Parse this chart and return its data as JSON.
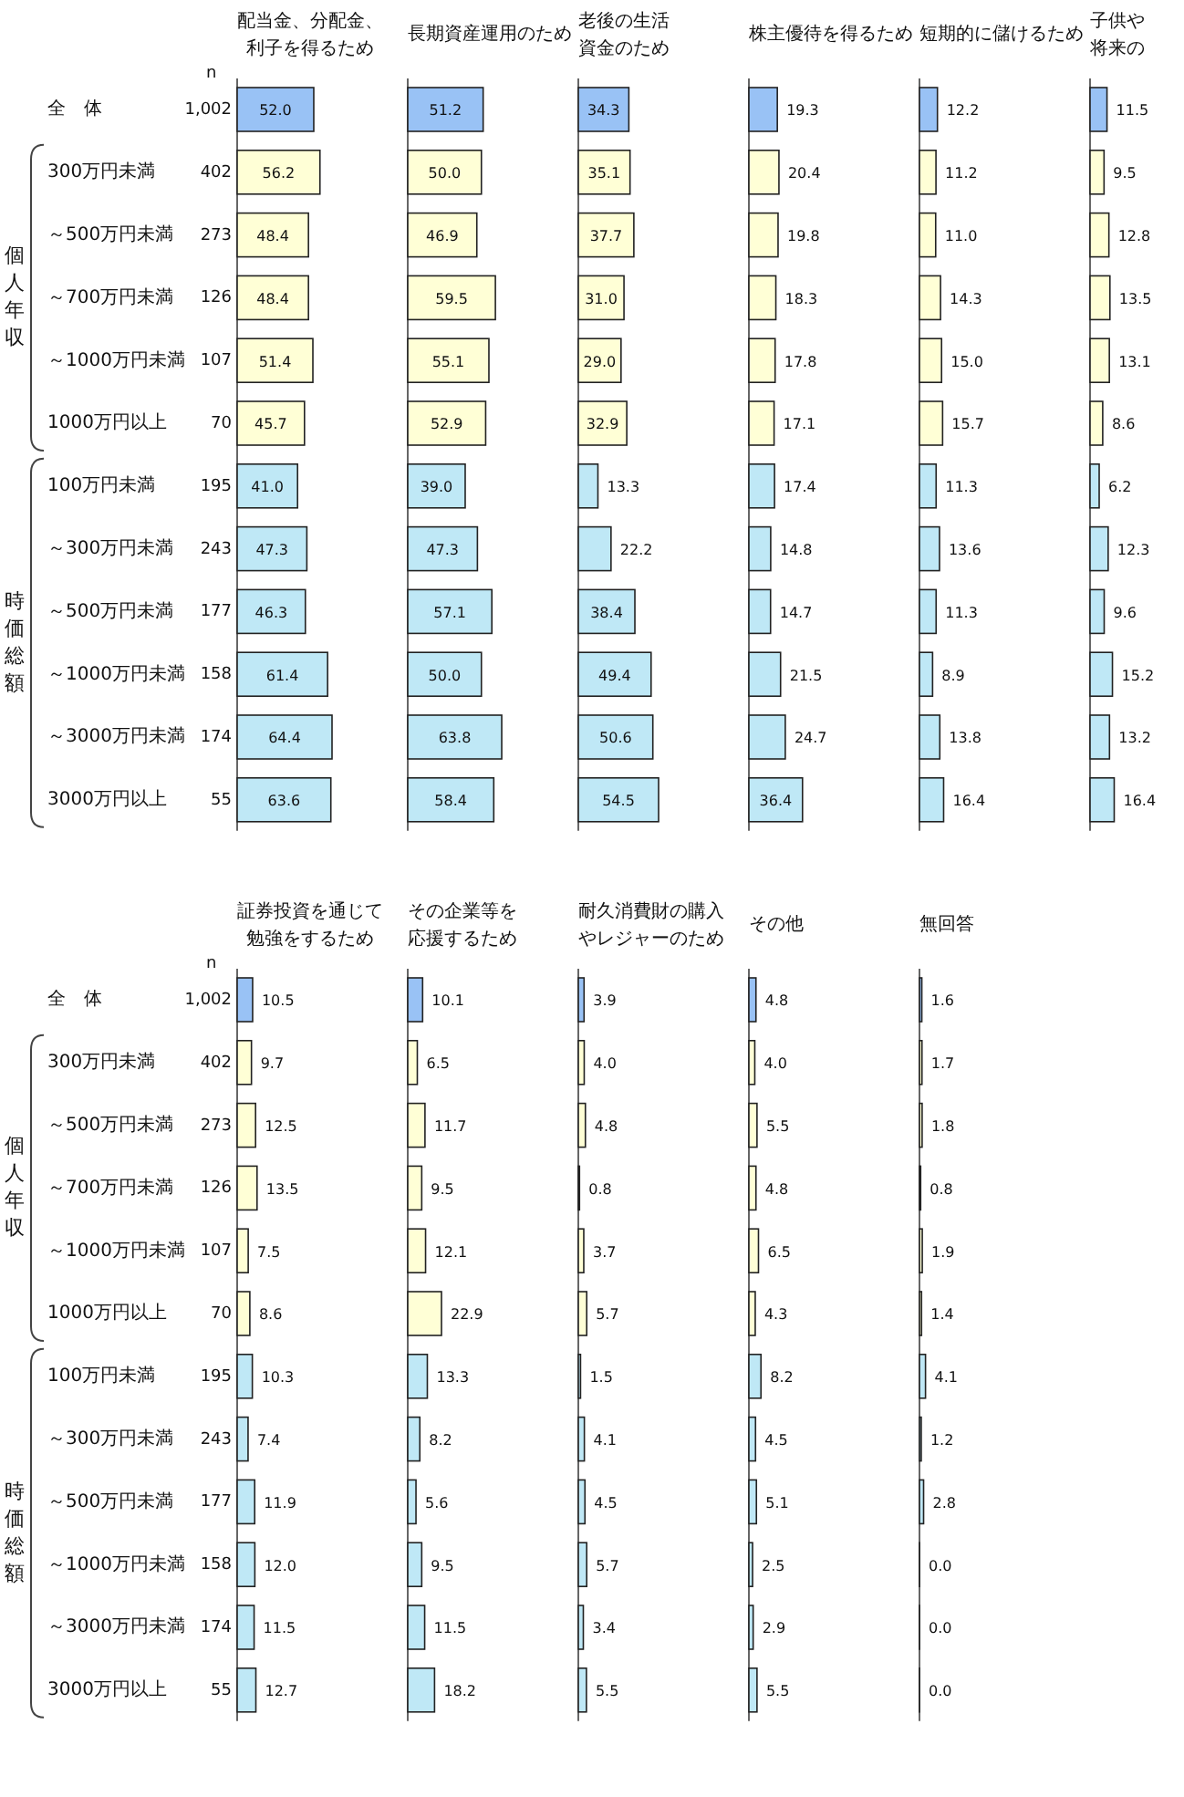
{
  "chart_data": [
    {
      "type": "other",
      "title": "n",
      "annotations": [
        "1,002",
        "402",
        "273",
        "126",
        "107",
        "70",
        "195",
        "243",
        "177",
        "158",
        "174",
        "55"
      ]
    },
    {
      "type": "other",
      "annotations": [
        "個人年収",
        "時価総額"
      ]
    },
    {
      "type": "bar",
      "orientation": "horizontal",
      "title": "配当金、分配金、利子を得るため",
      "tick_labels": "y",
      "categories": [
        "全　体",
        "300万円未満",
        "～500万円未満",
        "～700万円未満",
        "～1000万円未満",
        "1000万円以上",
        "100万円未満",
        "～300万円未満",
        "～500万円未満",
        "～1000万円未満",
        "～3000万円未満",
        "3000万円以上"
      ],
      "colors": [
        "#99c2f5",
        "#ffffd6",
        "#ffffd6",
        "#ffffd6",
        "#ffffd6",
        "#ffffd6",
        "#bfe8f6",
        "#bfe8f6",
        "#bfe8f6",
        "#bfe8f6",
        "#bfe8f6",
        "#bfe8f6"
      ],
      "values": [
        52.0,
        56.2,
        48.4,
        48.4,
        51.4,
        45.7,
        41.0,
        47.3,
        46.3,
        61.4,
        64.4,
        63.6
      ],
      "value_labels": [
        "52.0",
        "56.2",
        "48.4",
        "48.4",
        "51.4",
        "45.7",
        "41.0",
        "47.3",
        "46.3",
        "61.4",
        "64.4",
        "63.6"
      ]
    },
    {
      "type": "bar",
      "orientation": "horizontal",
      "title": "長期資産運用のため",
      "tick_labels": false,
      "categories": [
        "全　体",
        "300万円未満",
        "～500万円未満",
        "～700万円未満",
        "～1000万円未満",
        "1000万円以上",
        "100万円未満",
        "～300万円未満",
        "～500万円未満",
        "～1000万円未満",
        "～3000万円未満",
        "3000万円以上"
      ],
      "colors": [
        "#99c2f5",
        "#ffffd6",
        "#ffffd6",
        "#ffffd6",
        "#ffffd6",
        "#ffffd6",
        "#bfe8f6",
        "#bfe8f6",
        "#bfe8f6",
        "#bfe8f6",
        "#bfe8f6",
        "#bfe8f6"
      ],
      "values": [
        51.2,
        50.0,
        46.9,
        59.5,
        55.1,
        52.9,
        39.0,
        47.3,
        57.1,
        50.0,
        63.8,
        58.4
      ],
      "value_labels": [
        "51.2",
        "50.0",
        "46.9",
        "59.5",
        "55.1",
        "52.9",
        "39.0",
        "47.3",
        "57.1",
        "50.0",
        "63.8",
        "58.4"
      ]
    },
    {
      "type": "bar",
      "orientation": "horizontal",
      "title": "老後の生活資金のため",
      "tick_labels": false,
      "categories": [
        "全　体",
        "300万円未満",
        "～500万円未満",
        "～700万円未満",
        "～1000万円未満",
        "1000万円以上",
        "100万円未満",
        "～300万円未満",
        "～500万円未満",
        "～1000万円未満",
        "～3000万円未満",
        "3000万円以上"
      ],
      "colors": [
        "#99c2f5",
        "#ffffd6",
        "#ffffd6",
        "#ffffd6",
        "#ffffd6",
        "#ffffd6",
        "#bfe8f6",
        "#bfe8f6",
        "#bfe8f6",
        "#bfe8f6",
        "#bfe8f6",
        "#bfe8f6"
      ],
      "values": [
        34.3,
        35.1,
        37.7,
        31.0,
        29.0,
        32.9,
        13.3,
        22.2,
        38.4,
        49.4,
        50.6,
        54.5
      ],
      "value_labels": [
        "34.3",
        "35.1",
        "37.7",
        "31.0",
        "29.0",
        "32.9",
        "13.3",
        "22.2",
        "38.4",
        "49.4",
        "50.6",
        "54.5"
      ]
    },
    {
      "type": "bar",
      "orientation": "horizontal",
      "title": "株主優待を得るため",
      "tick_labels": false,
      "categories": [
        "全　体",
        "300万円未満",
        "～500万円未満",
        "～700万円未満",
        "～1000万円未満",
        "1000万円以上",
        "100万円未満",
        "～300万円未満",
        "～500万円未満",
        "～1000万円未満",
        "～3000万円未満",
        "3000万円以上"
      ],
      "colors": [
        "#99c2f5",
        "#ffffd6",
        "#ffffd6",
        "#ffffd6",
        "#ffffd6",
        "#ffffd6",
        "#bfe8f6",
        "#bfe8f6",
        "#bfe8f6",
        "#bfe8f6",
        "#bfe8f6",
        "#bfe8f6"
      ],
      "values": [
        19.3,
        20.4,
        19.8,
        18.3,
        17.8,
        17.1,
        17.4,
        14.8,
        14.7,
        21.5,
        24.7,
        36.4
      ],
      "value_labels": [
        "19.3",
        "20.4",
        "19.8",
        "18.3",
        "17.8",
        "17.1",
        "17.4",
        "14.8",
        "14.7",
        "21.5",
        "24.7",
        "36.4"
      ]
    },
    {
      "type": "bar",
      "orientation": "horizontal",
      "title": "短期的に儲けるため",
      "tick_labels": false,
      "categories": [
        "全　体",
        "300万円未満",
        "～500万円未満",
        "～700万円未満",
        "～1000万円未満",
        "1000万円以上",
        "100万円未満",
        "～300万円未満",
        "～500万円未満",
        "～1000万円未満",
        "～3000万円未満",
        "3000万円以上"
      ],
      "colors": [
        "#99c2f5",
        "#ffffd6",
        "#ffffd6",
        "#ffffd6",
        "#ffffd6",
        "#ffffd6",
        "#bfe8f6",
        "#bfe8f6",
        "#bfe8f6",
        "#bfe8f6",
        "#bfe8f6",
        "#bfe8f6"
      ],
      "values": [
        12.2,
        11.2,
        11.0,
        14.3,
        15.0,
        15.7,
        11.3,
        13.6,
        11.3,
        8.9,
        13.8,
        16.4
      ],
      "value_labels": [
        "12.2",
        "11.2",
        "11.0",
        "14.3",
        "15.0",
        "15.7",
        "11.3",
        "13.6",
        "11.3",
        "8.9",
        "13.8",
        "16.4"
      ]
    },
    {
      "type": "bar",
      "orientation": "horizontal",
      "title": "子供や将来の",
      "tick_labels": false,
      "categories": [
        "全　体",
        "300万円未満",
        "～500万円未満",
        "～700万円未満",
        "～1000万円未満",
        "1000万円以上",
        "100万円未満",
        "～300万円未満",
        "～500万円未満",
        "～1000万円未満",
        "～3000万円未満",
        "3000万円以上"
      ],
      "colors": [
        "#99c2f5",
        "#ffffd6",
        "#ffffd6",
        "#ffffd6",
        "#ffffd6",
        "#ffffd6",
        "#bfe8f6",
        "#bfe8f6",
        "#bfe8f6",
        "#bfe8f6",
        "#bfe8f6",
        "#bfe8f6"
      ],
      "values": [
        11.5,
        9.5,
        12.8,
        13.5,
        13.1,
        8.6,
        6.2,
        12.3,
        9.6,
        15.2,
        13.2,
        16.4
      ],
      "value_labels": [
        "11.5",
        "9.5",
        "12.8",
        "13.5",
        "13.1",
        "8.6",
        "6.2",
        "12.3",
        "9.6",
        "15.2",
        "13.2",
        "16.4"
      ]
    },
    {
      "type": "other",
      "title": "n",
      "annotations": [
        "1,002",
        "402",
        "273",
        "126",
        "107",
        "70",
        "195",
        "243",
        "177",
        "158",
        "174",
        "55"
      ]
    },
    {
      "type": "other",
      "annotations": [
        "個人年収",
        "時価総額"
      ]
    },
    {
      "type": "bar",
      "orientation": "horizontal",
      "title": "証券投資を通じて勉強をするため",
      "tick_labels": "y",
      "categories": [
        "全　体",
        "300万円未満",
        "～500万円未満",
        "～700万円未満",
        "～1000万円未満",
        "1000万円以上",
        "100万円未満",
        "～300万円未満",
        "～500万円未満",
        "～1000万円未満",
        "～3000万円未満",
        "3000万円以上"
      ],
      "colors": [
        "#99c2f5",
        "#ffffd6",
        "#ffffd6",
        "#ffffd6",
        "#ffffd6",
        "#ffffd6",
        "#bfe8f6",
        "#bfe8f6",
        "#bfe8f6",
        "#bfe8f6",
        "#bfe8f6",
        "#bfe8f6"
      ],
      "values": [
        10.5,
        9.7,
        12.5,
        13.5,
        7.5,
        8.6,
        10.3,
        7.4,
        11.9,
        12.0,
        11.5,
        12.7
      ],
      "value_labels": [
        "10.5",
        "9.7",
        "12.5",
        "13.5",
        "7.5",
        "8.6",
        "10.3",
        "7.4",
        "11.9",
        "12.0",
        "11.5",
        "12.7"
      ]
    },
    {
      "type": "bar",
      "orientation": "horizontal",
      "title": "その企業等を応援するため",
      "tick_labels": false,
      "categories": [
        "全　体",
        "300万円未満",
        "～500万円未満",
        "～700万円未満",
        "～1000万円未満",
        "1000万円以上",
        "100万円未満",
        "～300万円未満",
        "～500万円未満",
        "～1000万円未満",
        "～3000万円未満",
        "3000万円以上"
      ],
      "colors": [
        "#99c2f5",
        "#ffffd6",
        "#ffffd6",
        "#ffffd6",
        "#ffffd6",
        "#ffffd6",
        "#bfe8f6",
        "#bfe8f6",
        "#bfe8f6",
        "#bfe8f6",
        "#bfe8f6",
        "#bfe8f6"
      ],
      "values": [
        10.1,
        6.5,
        11.7,
        9.5,
        12.1,
        22.9,
        13.3,
        8.2,
        5.6,
        9.5,
        11.5,
        18.2
      ],
      "value_labels": [
        "10.1",
        "6.5",
        "11.7",
        "9.5",
        "12.1",
        "22.9",
        "13.3",
        "8.2",
        "5.6",
        "9.5",
        "11.5",
        "18.2"
      ]
    },
    {
      "type": "bar",
      "orientation": "horizontal",
      "title": "耐久消費財の購入やレジャーのため",
      "tick_labels": false,
      "categories": [
        "全　体",
        "300万円未満",
        "～500万円未満",
        "～700万円未満",
        "～1000万円未満",
        "1000万円以上",
        "100万円未満",
        "～300万円未満",
        "～500万円未満",
        "～1000万円未満",
        "～3000万円未満",
        "3000万円以上"
      ],
      "colors": [
        "#99c2f5",
        "#ffffd6",
        "#ffffd6",
        "#ffffd6",
        "#ffffd6",
        "#ffffd6",
        "#bfe8f6",
        "#bfe8f6",
        "#bfe8f6",
        "#bfe8f6",
        "#bfe8f6",
        "#bfe8f6"
      ],
      "values": [
        3.9,
        4.0,
        4.8,
        0.8,
        3.7,
        5.7,
        1.5,
        4.1,
        4.5,
        5.7,
        3.4,
        5.5
      ],
      "value_labels": [
        "3.9",
        "4.0",
        "4.8",
        "0.8",
        "3.7",
        "5.7",
        "1.5",
        "4.1",
        "4.5",
        "5.7",
        "3.4",
        "5.5"
      ]
    },
    {
      "type": "bar",
      "orientation": "horizontal",
      "title": "その他",
      "tick_labels": false,
      "categories": [
        "全　体",
        "300万円未満",
        "～500万円未満",
        "～700万円未満",
        "～1000万円未満",
        "1000万円以上",
        "100万円未満",
        "～300万円未満",
        "～500万円未満",
        "～1000万円未満",
        "～3000万円未満",
        "3000万円以上"
      ],
      "colors": [
        "#99c2f5",
        "#ffffd6",
        "#ffffd6",
        "#ffffd6",
        "#ffffd6",
        "#ffffd6",
        "#bfe8f6",
        "#bfe8f6",
        "#bfe8f6",
        "#bfe8f6",
        "#bfe8f6",
        "#bfe8f6"
      ],
      "values": [
        4.8,
        4.0,
        5.5,
        4.8,
        6.5,
        4.3,
        8.2,
        4.5,
        5.1,
        2.5,
        2.9,
        5.5
      ],
      "value_labels": [
        "4.8",
        "4.0",
        "5.5",
        "4.8",
        "6.5",
        "4.3",
        "8.2",
        "4.5",
        "5.1",
        "2.5",
        "2.9",
        "5.5"
      ]
    },
    {
      "type": "bar",
      "orientation": "horizontal",
      "title": "無回答",
      "tick_labels": false,
      "categories": [
        "全　体",
        "300万円未満",
        "～500万円未満",
        "～700万円未満",
        "～1000万円未満",
        "1000万円以上",
        "100万円未満",
        "～300万円未満",
        "～500万円未満",
        "～1000万円未満",
        "～3000万円未満",
        "3000万円以上"
      ],
      "colors": [
        "#99c2f5",
        "#ffffd6",
        "#ffffd6",
        "#ffffd6",
        "#ffffd6",
        "#ffffd6",
        "#bfe8f6",
        "#bfe8f6",
        "#bfe8f6",
        "#bfe8f6",
        "#bfe8f6",
        "#bfe8f6"
      ],
      "values": [
        1.6,
        1.7,
        1.8,
        0.8,
        1.9,
        1.4,
        4.1,
        1.2,
        2.8,
        0.0,
        0.0,
        0.0
      ],
      "value_labels": [
        "1.6",
        "1.7",
        "1.8",
        "0.8",
        "1.9",
        "1.4",
        "4.1",
        "1.2",
        "2.8",
        "0.0",
        "0.0",
        "0.0"
      ]
    }
  ]
}
